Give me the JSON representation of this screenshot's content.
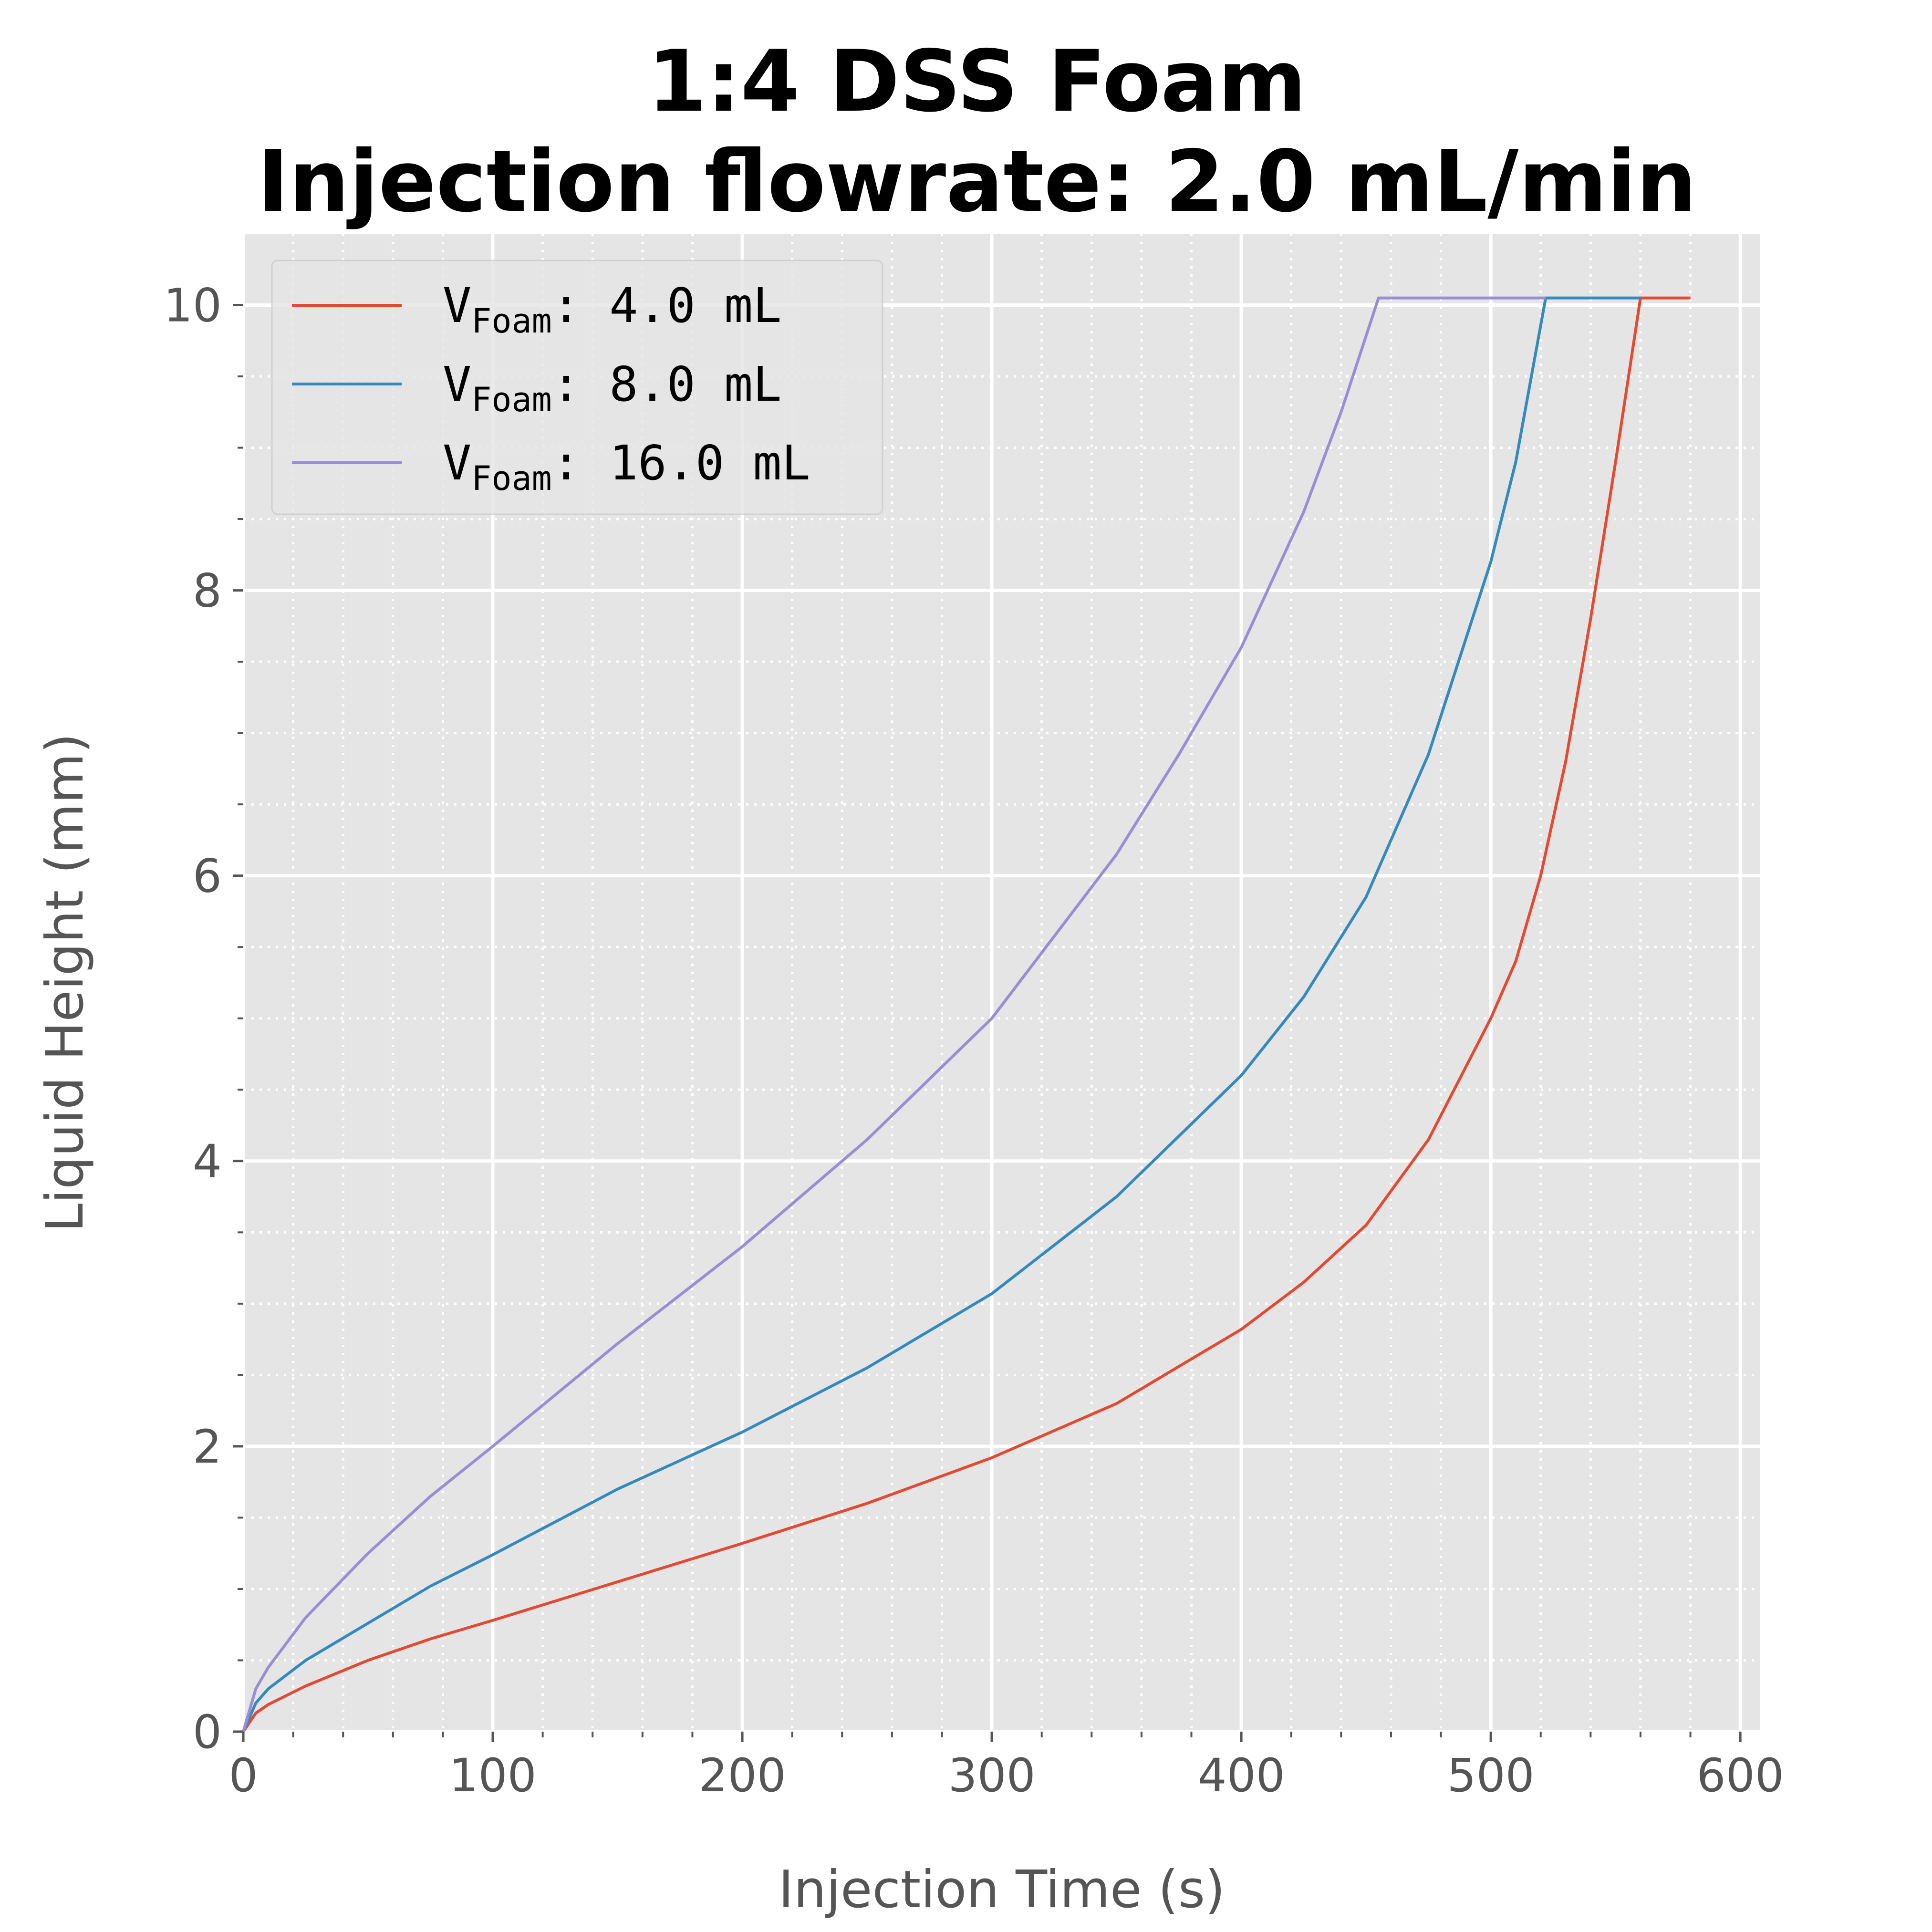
{
  "chart_data": {
    "type": "line",
    "title_line1": "1:4 DSS Foam",
    "title_line2": "Injection flowrate: 2.0 mL/min",
    "xlabel": "Injection Time (s)",
    "ylabel": "Liquid Height (mm)",
    "xlim": [
      0,
      608
    ],
    "ylim": [
      0,
      10.5
    ],
    "xticks": [
      0,
      100,
      200,
      300,
      400,
      500,
      600
    ],
    "yticks": [
      0,
      2,
      4,
      6,
      8,
      10
    ],
    "xtick_labels": [
      "0",
      "100",
      "200",
      "300",
      "400",
      "500",
      "600"
    ],
    "ytick_labels": [
      "0",
      "2",
      "4",
      "6",
      "8",
      "10"
    ],
    "grid": true,
    "minor_grid": true,
    "legend_position": "upper-left",
    "series": [
      {
        "label_main": "V",
        "label_sub": "Foam",
        "label_rest": ": 4.0 mL",
        "color": "#e24a33",
        "x": [
          0,
          5,
          10,
          25,
          50,
          75,
          100,
          150,
          200,
          250,
          300,
          350,
          400,
          425,
          450,
          475,
          500,
          510,
          520,
          530,
          540,
          550,
          560,
          580
        ],
        "y": [
          0,
          0.13,
          0.19,
          0.32,
          0.5,
          0.65,
          0.78,
          1.05,
          1.32,
          1.6,
          1.92,
          2.3,
          2.82,
          3.15,
          3.55,
          4.15,
          5.0,
          5.4,
          6.0,
          6.8,
          7.8,
          8.9,
          10.05,
          10.05
        ]
      },
      {
        "label_main": "V",
        "label_sub": "Foam",
        "label_rest": ": 8.0 mL",
        "color": "#348abd",
        "x": [
          0,
          5,
          10,
          25,
          50,
          75,
          100,
          150,
          200,
          250,
          300,
          350,
          400,
          425,
          450,
          475,
          500,
          510,
          522,
          560
        ],
        "y": [
          0,
          0.2,
          0.3,
          0.5,
          0.76,
          1.02,
          1.24,
          1.7,
          2.1,
          2.55,
          3.07,
          3.75,
          4.6,
          5.15,
          5.85,
          6.85,
          8.2,
          8.9,
          10.05,
          10.05
        ]
      },
      {
        "label_main": "V",
        "label_sub": "Foam",
        "label_rest": ": 16.0 mL",
        "color": "#988ed5",
        "x": [
          0,
          5,
          10,
          25,
          50,
          75,
          100,
          150,
          200,
          250,
          300,
          350,
          375,
          400,
          425,
          440,
          455,
          522
        ],
        "y": [
          0,
          0.3,
          0.45,
          0.8,
          1.25,
          1.65,
          2.0,
          2.72,
          3.4,
          4.15,
          5.0,
          6.15,
          6.85,
          7.6,
          8.55,
          9.25,
          10.05,
          10.05
        ]
      }
    ]
  }
}
